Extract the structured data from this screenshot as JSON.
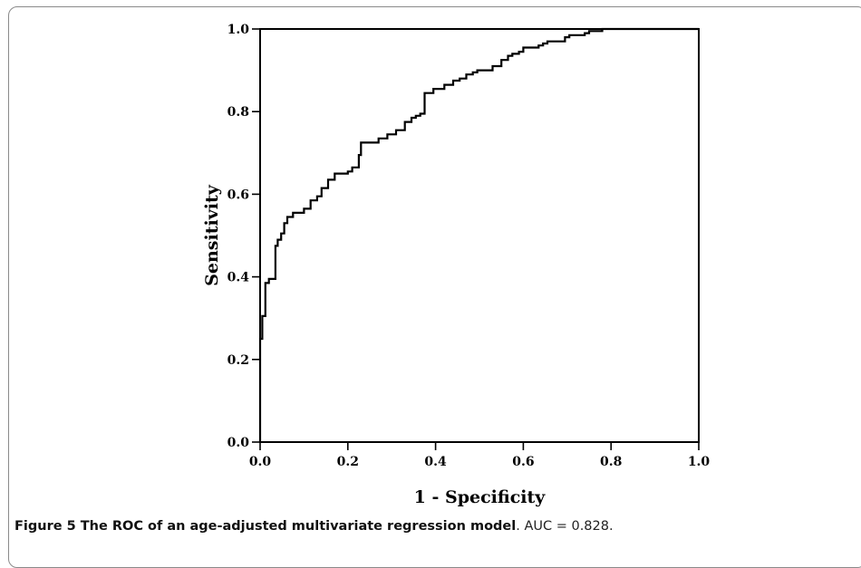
{
  "chart_data": {
    "type": "line",
    "xlabel": "1 - Specificity",
    "ylabel": "Sensitivity",
    "xlim": [
      0.0,
      1.0
    ],
    "ylim": [
      0.0,
      1.0
    ],
    "x_ticks": [
      "0.0",
      "0.2",
      "0.4",
      "0.6",
      "0.8",
      "1.0"
    ],
    "y_ticks": [
      "0.0",
      "0.2",
      "0.4",
      "0.6",
      "0.8",
      "1.0"
    ],
    "grid": false,
    "series": [
      {
        "x": [
          0.0,
          0.0,
          0.005,
          0.005,
          0.012,
          0.012,
          0.02,
          0.02,
          0.035,
          0.035,
          0.04,
          0.04,
          0.048,
          0.048,
          0.055,
          0.055,
          0.062,
          0.062,
          0.075,
          0.075,
          0.1,
          0.1,
          0.115,
          0.115,
          0.13,
          0.13,
          0.14,
          0.14,
          0.155,
          0.155,
          0.17,
          0.17,
          0.2,
          0.2,
          0.21,
          0.21,
          0.225,
          0.225,
          0.23,
          0.23,
          0.27,
          0.27,
          0.29,
          0.29,
          0.31,
          0.31,
          0.33,
          0.33,
          0.345,
          0.345,
          0.355,
          0.355,
          0.365,
          0.365,
          0.375,
          0.375,
          0.395,
          0.395,
          0.42,
          0.42,
          0.44,
          0.44,
          0.455,
          0.455,
          0.47,
          0.47,
          0.485,
          0.485,
          0.495,
          0.495,
          0.53,
          0.53,
          0.55,
          0.55,
          0.565,
          0.565,
          0.575,
          0.575,
          0.59,
          0.59,
          0.6,
          0.6,
          0.635,
          0.635,
          0.645,
          0.645,
          0.655,
          0.655,
          0.695,
          0.695,
          0.705,
          0.705,
          0.74,
          0.74,
          0.75,
          0.75,
          0.78,
          0.78,
          0.8,
          0.8,
          0.81,
          0.81,
          1.0
        ],
        "y": [
          0.0,
          0.25,
          0.25,
          0.305,
          0.305,
          0.385,
          0.385,
          0.395,
          0.395,
          0.475,
          0.475,
          0.49,
          0.49,
          0.505,
          0.505,
          0.53,
          0.53,
          0.545,
          0.545,
          0.555,
          0.555,
          0.565,
          0.565,
          0.585,
          0.585,
          0.595,
          0.595,
          0.615,
          0.615,
          0.635,
          0.635,
          0.65,
          0.65,
          0.655,
          0.655,
          0.665,
          0.665,
          0.695,
          0.695,
          0.725,
          0.725,
          0.735,
          0.735,
          0.745,
          0.745,
          0.755,
          0.755,
          0.775,
          0.775,
          0.785,
          0.785,
          0.79,
          0.79,
          0.795,
          0.795,
          0.845,
          0.845,
          0.855,
          0.855,
          0.865,
          0.865,
          0.875,
          0.875,
          0.88,
          0.88,
          0.89,
          0.89,
          0.895,
          0.895,
          0.9,
          0.9,
          0.91,
          0.91,
          0.925,
          0.925,
          0.935,
          0.935,
          0.94,
          0.94,
          0.945,
          0.945,
          0.955,
          0.955,
          0.96,
          0.96,
          0.965,
          0.965,
          0.97,
          0.97,
          0.98,
          0.98,
          0.985,
          0.985,
          0.99,
          0.99,
          0.995,
          0.995,
          1.0,
          1.0,
          1.0,
          1.0,
          1.0,
          1.0
        ]
      }
    ]
  },
  "caption": {
    "label": "Figure 5 The ROC of an age-adjusted multivariate regression model",
    "text": ". AUC = 0.828."
  }
}
